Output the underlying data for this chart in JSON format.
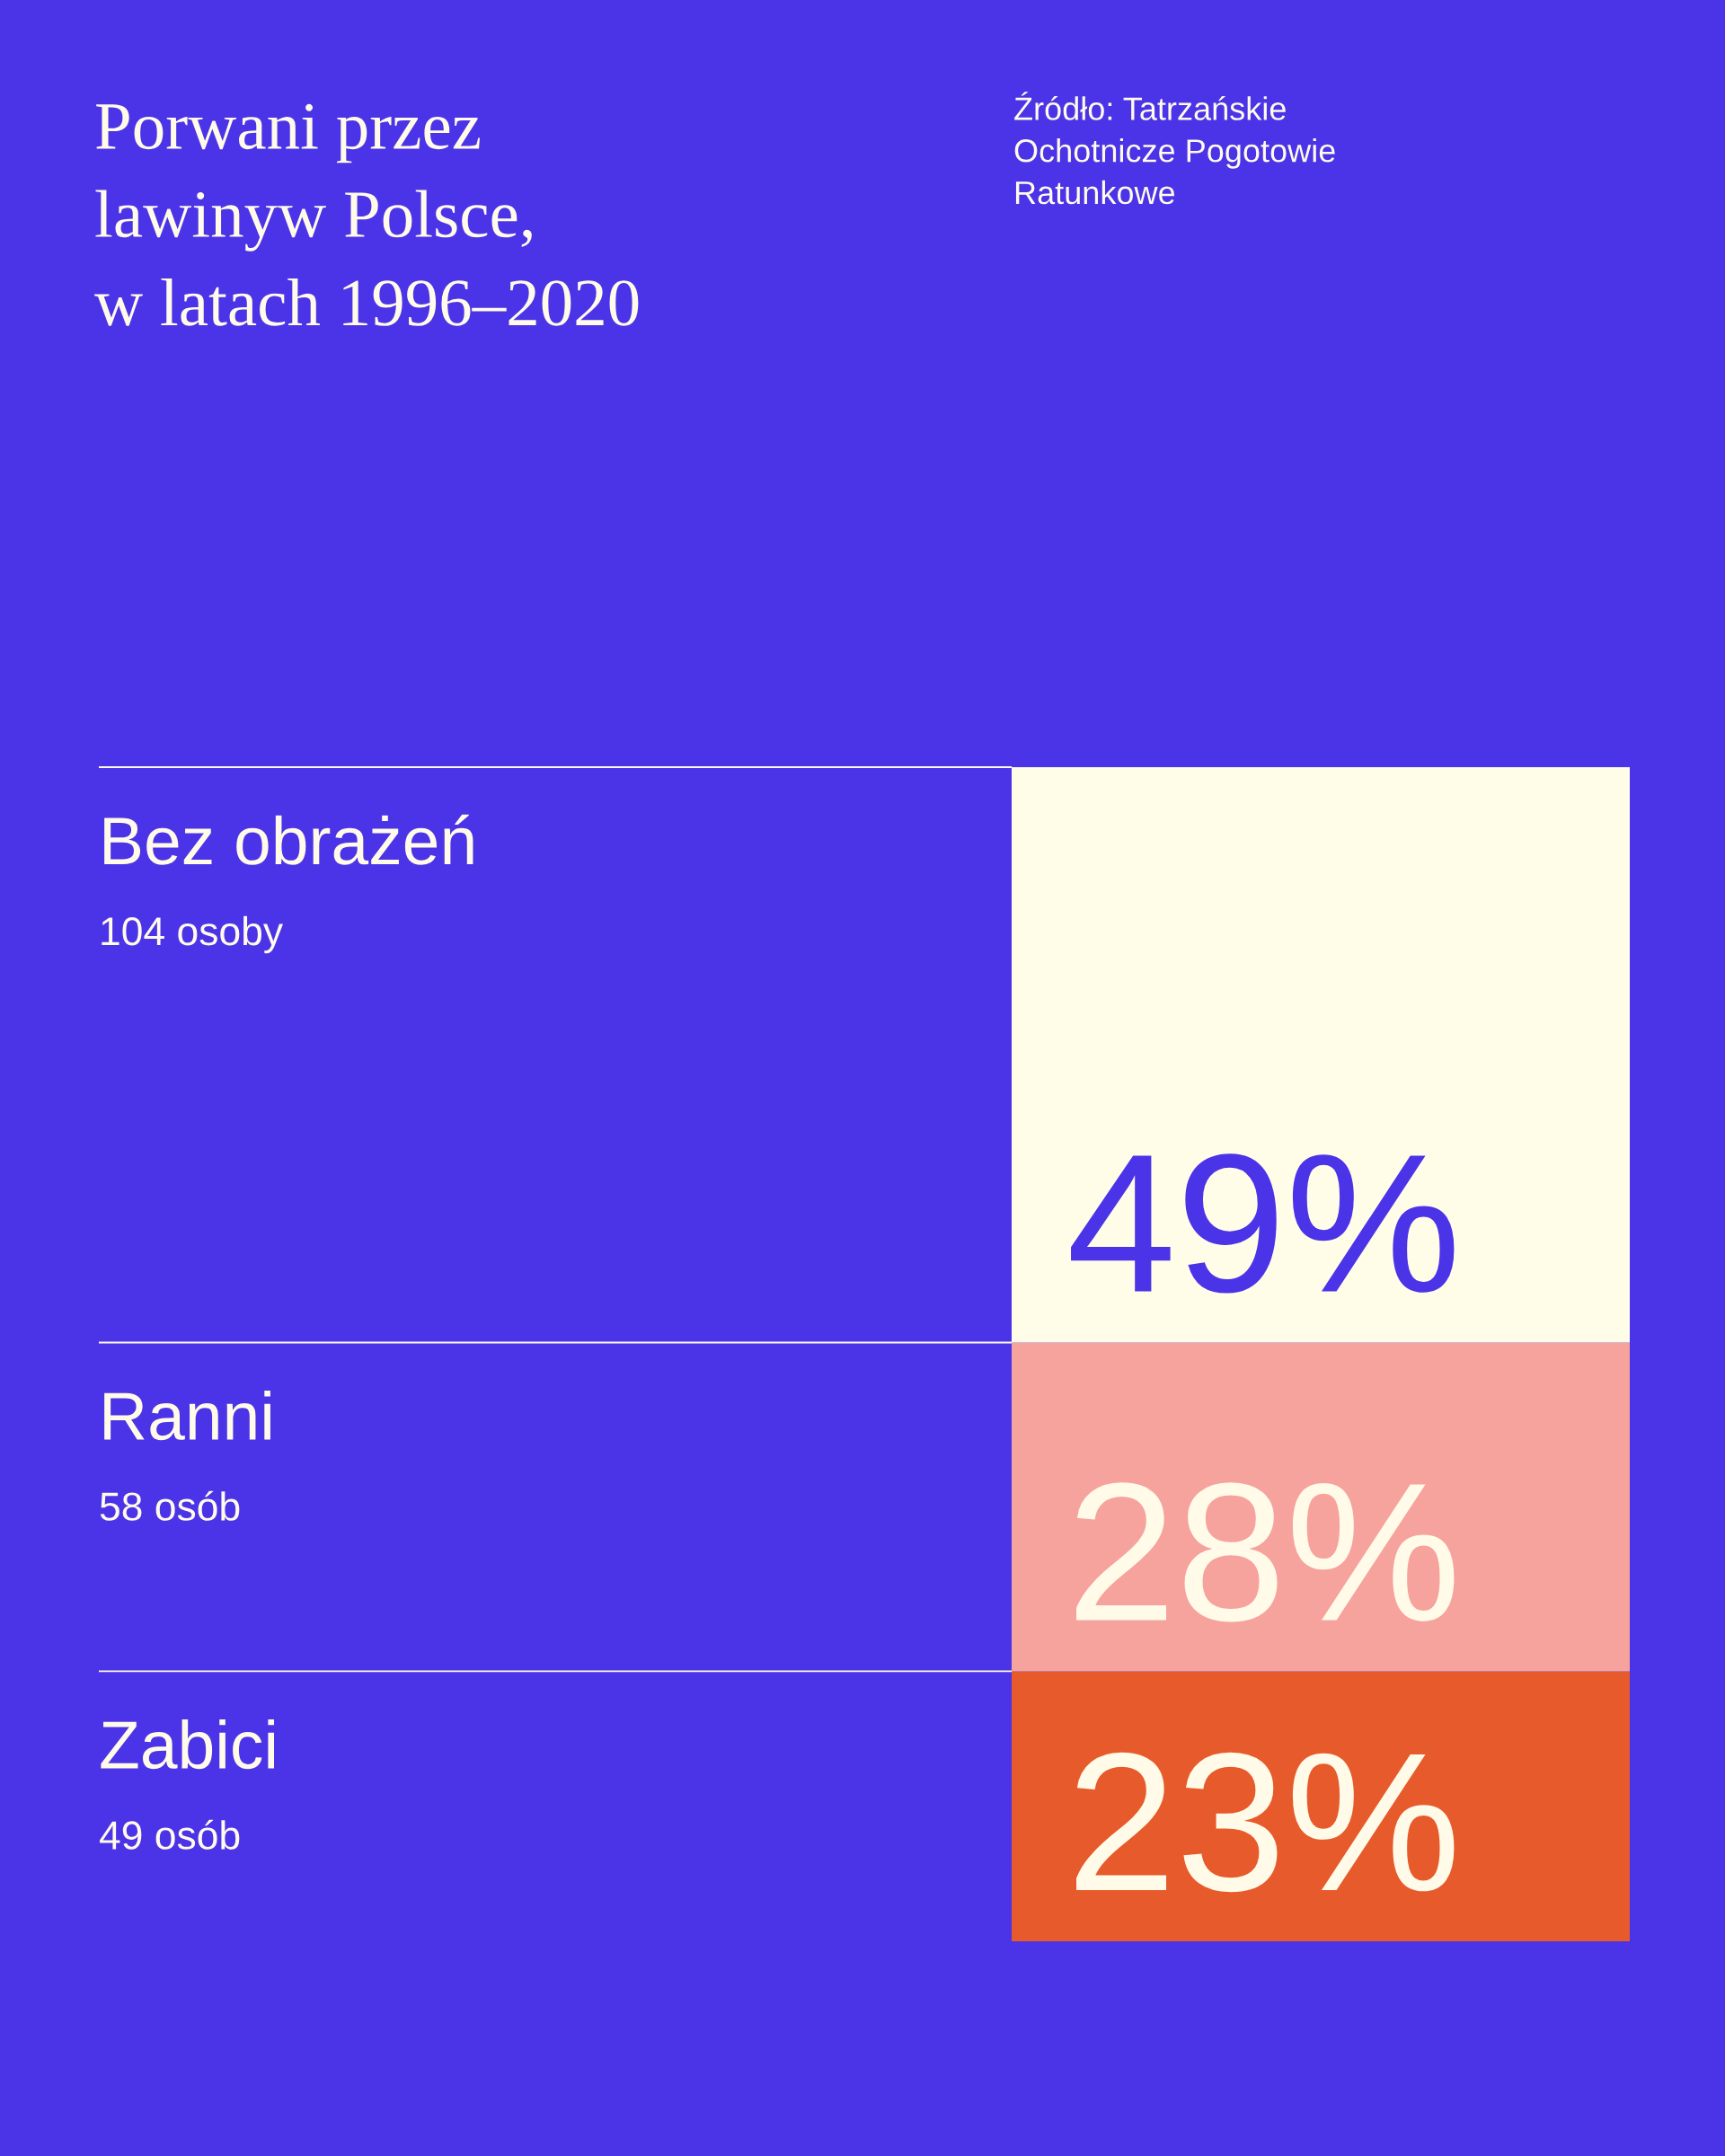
{
  "chart_data": {
    "type": "bar",
    "title": "Porwani przez\nlawinyw Polsce,\nw latach 1996–2020",
    "categories": [
      null
    ],
    "stacked": true,
    "tick_labels": false,
    "series": [
      {
        "name": "Zabici",
        "color": "#e75a2b",
        "values": [
          23
        ],
        "value_labels": [
          "23%"
        ]
      },
      {
        "name": "Ranni",
        "color": "#f7a39d",
        "values": [
          28
        ],
        "value_labels": [
          "28%"
        ]
      },
      {
        "name": "Bez obrażeń",
        "color": "#fffde8",
        "values": [
          49
        ],
        "value_labels": [
          "49%"
        ]
      }
    ],
    "annotations": [
      "Źródło: Tatrzańskie\nOchotnicze Pogotowie\nRatunkowe",
      "49 osób",
      "58 osób",
      "104 osoby"
    ]
  }
}
